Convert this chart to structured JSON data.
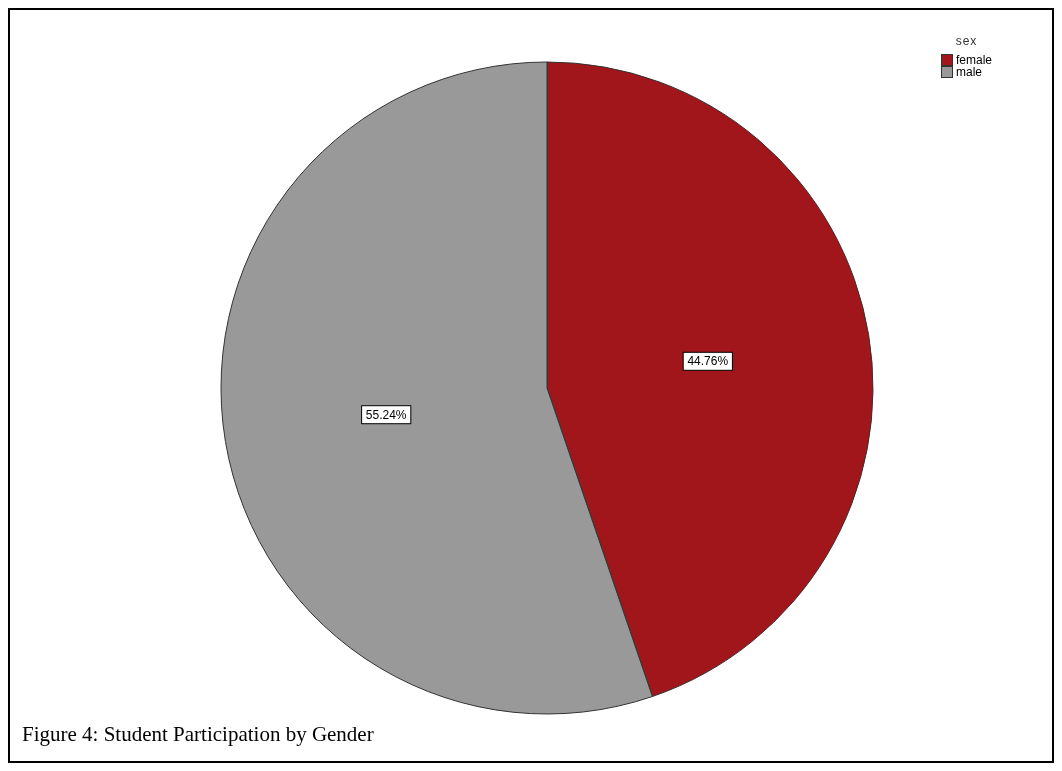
{
  "chart_data": {
    "type": "pie",
    "categories": [
      "female",
      "male"
    ],
    "values": [
      44.76,
      55.24
    ],
    "colors": [
      "#a0161a",
      "#999999"
    ],
    "value_labels": [
      "44.76%",
      "55.24%"
    ],
    "legend_title": "sex",
    "legend": "top right",
    "annotations": [
      "Figure 4:  Student Participation by Gender"
    ]
  }
}
